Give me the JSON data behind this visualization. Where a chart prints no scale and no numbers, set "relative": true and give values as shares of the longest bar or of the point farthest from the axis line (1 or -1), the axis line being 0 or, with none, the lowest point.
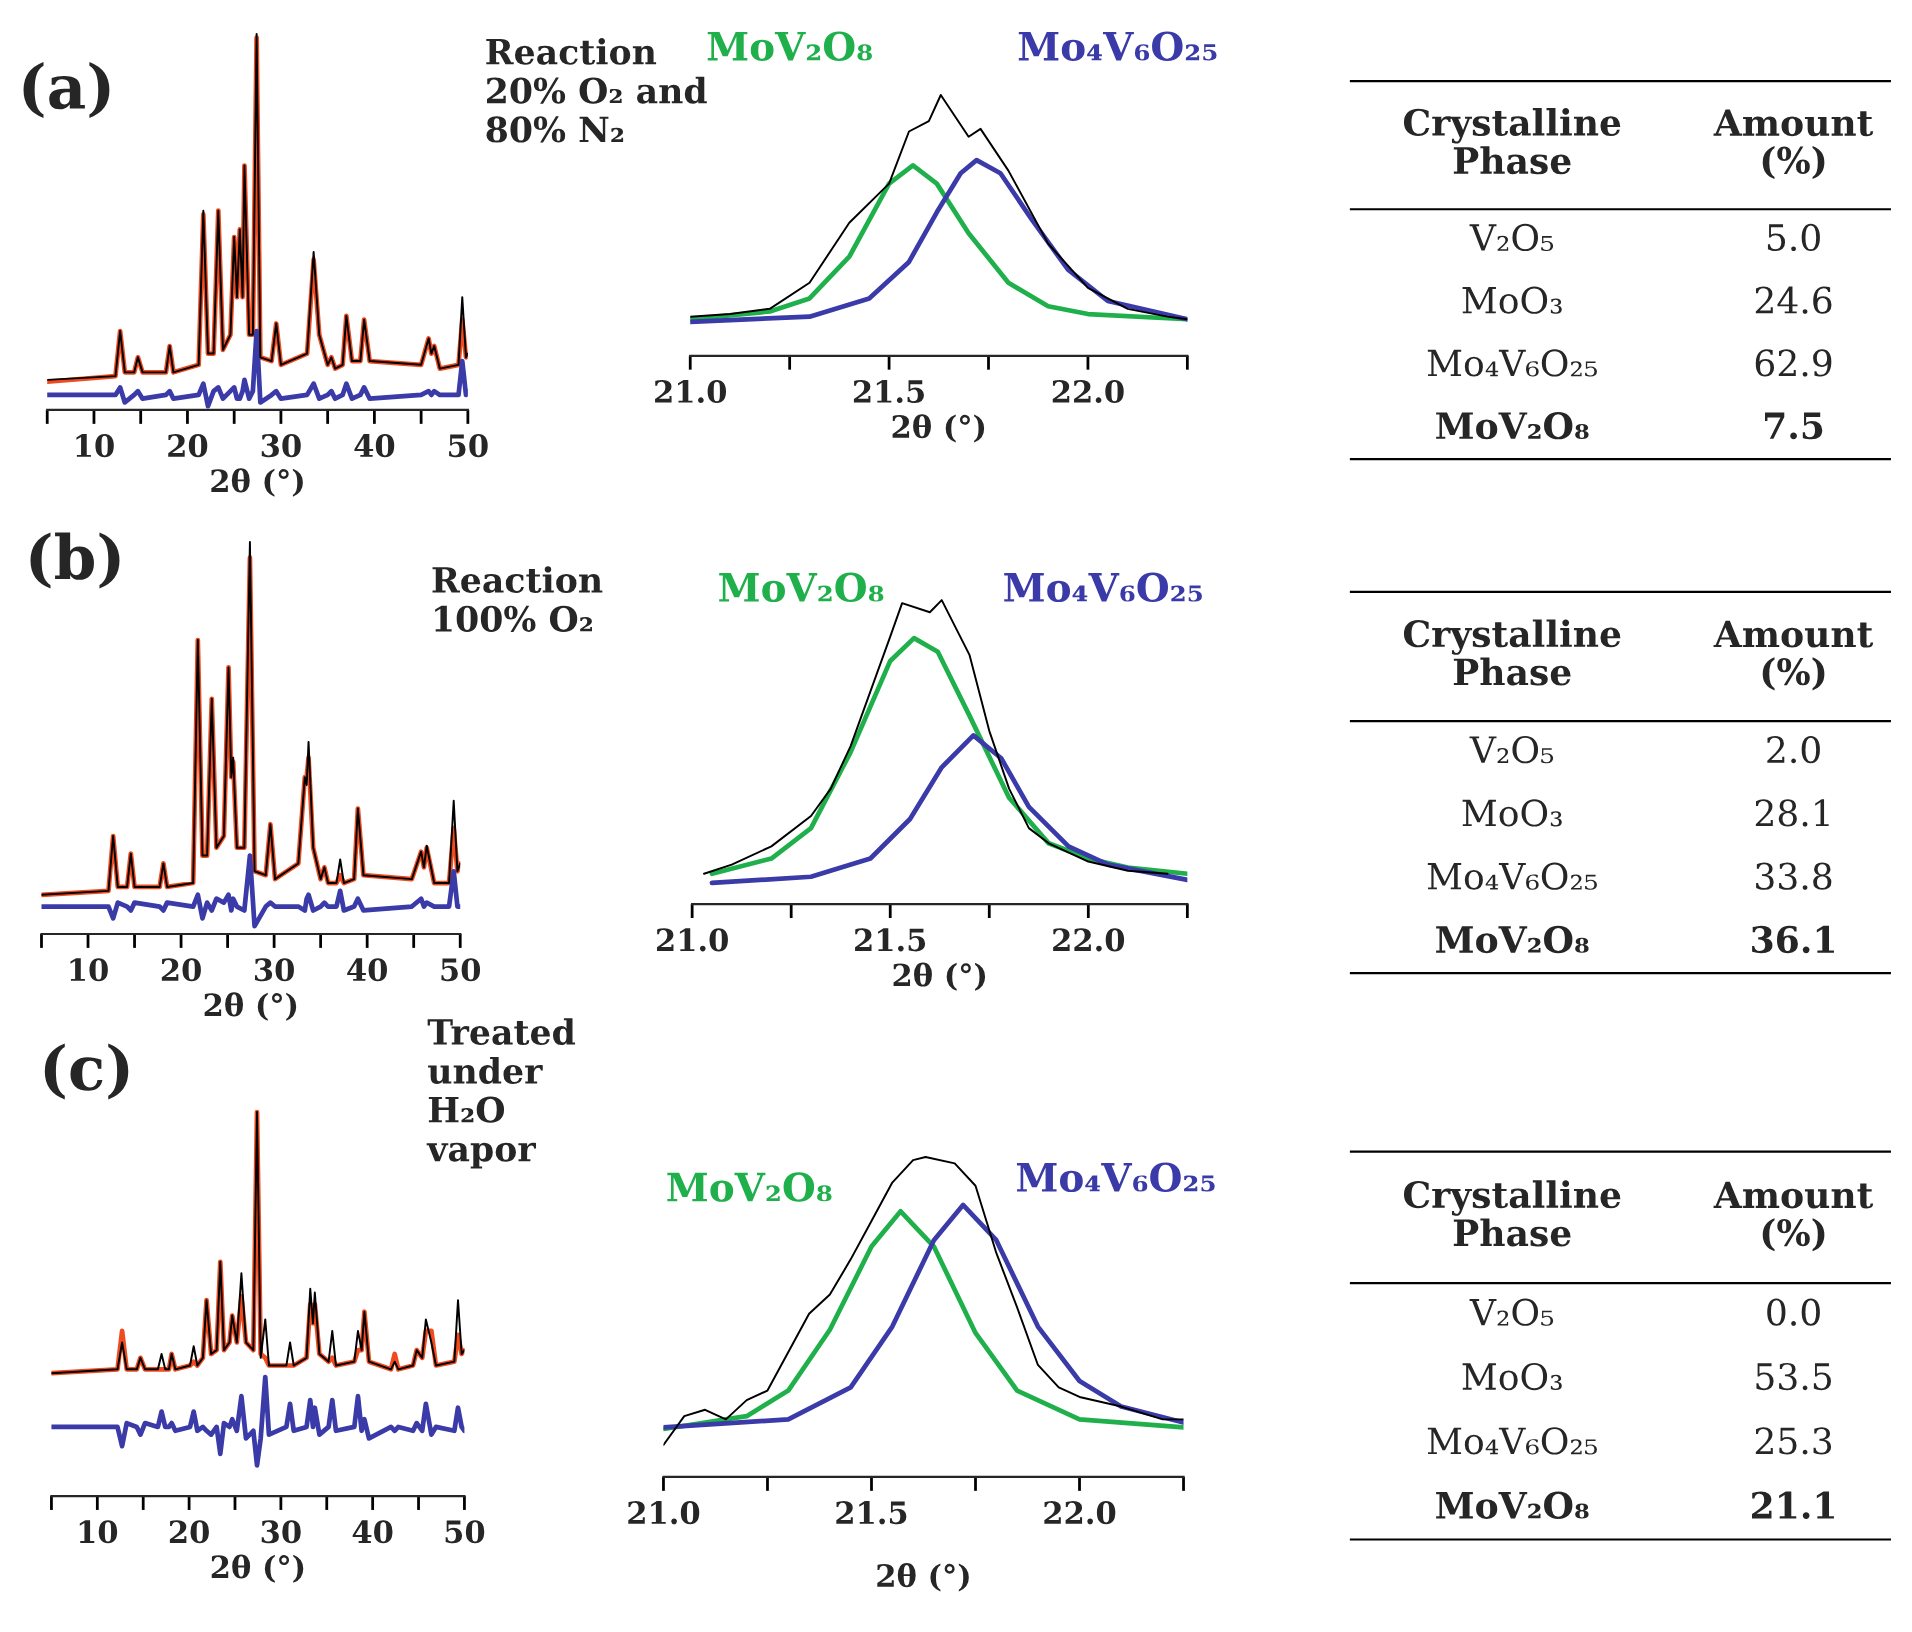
{
  "chart_data": [
    {
      "type": "line",
      "relative": true,
      "xlabel": "2θ (°)",
      "annotations": [
        "(a)",
        "Reaction\n20% O₂ and\n80% N₂"
      ],
      "xlim": [
        5,
        50
      ],
      "xticks": [
        {
          "value": 5,
          "label": null
        },
        10,
        {
          "value": 15,
          "label": null
        },
        20,
        {
          "value": 25,
          "label": null
        },
        30,
        {
          "value": 35,
          "label": null
        },
        40,
        {
          "value": 45,
          "label": null
        },
        50
      ],
      "x": [
        5,
        12.3,
        12.8,
        13.3,
        14.3,
        14.7,
        15.2,
        17.7,
        18.1,
        18.5,
        21.2,
        21.7,
        22.2,
        22.8,
        23.3,
        23.8,
        24.6,
        25.0,
        25.3,
        25.6,
        25.9,
        26.1,
        26.6,
        27.0,
        27.4,
        27.8,
        29.0,
        29.5,
        30.0,
        32.8,
        33.5,
        34.1,
        35.0,
        35.4,
        35.8,
        36.6,
        37.0,
        37.6,
        38.5,
        38.9,
        39.5,
        45.0,
        45.8,
        46.1,
        46.4,
        47.0,
        49.0,
        49.4,
        49.8,
        50
      ],
      "series": [
        {
          "color": "#000000",
          "values": [
            0.08,
            0.09,
            0.21,
            0.1,
            0.1,
            0.14,
            0.1,
            0.1,
            0.17,
            0.1,
            0.12,
            0.53,
            0.15,
            0.15,
            0.53,
            0.16,
            0.2,
            0.46,
            0.3,
            0.48,
            0.3,
            0.65,
            0.2,
            0.2,
            1.0,
            0.14,
            0.13,
            0.23,
            0.12,
            0.15,
            0.42,
            0.2,
            0.12,
            0.14,
            0.11,
            0.12,
            0.25,
            0.13,
            0.13,
            0.24,
            0.13,
            0.12,
            0.19,
            0.15,
            0.17,
            0.11,
            0.12,
            0.3,
            0.14,
            0.15
          ]
        },
        {
          "color": "#f04a1f",
          "values": [
            0.075,
            0.09,
            0.21,
            0.1,
            0.1,
            0.14,
            0.1,
            0.1,
            0.17,
            0.1,
            0.12,
            0.52,
            0.15,
            0.15,
            0.53,
            0.16,
            0.2,
            0.46,
            0.3,
            0.48,
            0.3,
            0.65,
            0.2,
            0.2,
            0.99,
            0.14,
            0.13,
            0.23,
            0.12,
            0.15,
            0.4,
            0.2,
            0.12,
            0.14,
            0.11,
            0.12,
            0.25,
            0.13,
            0.13,
            0.24,
            0.13,
            0.12,
            0.19,
            0.15,
            0.17,
            0.11,
            0.12,
            0.24,
            0.14,
            0.15
          ]
        },
        {
          "color": "#3a3aa8",
          "values": [
            0.04,
            0.04,
            0.06,
            0.02,
            0.04,
            0.05,
            0.03,
            0.04,
            0.05,
            0.03,
            0.04,
            0.07,
            0.01,
            0.05,
            0.06,
            0.03,
            0.05,
            0.06,
            0.03,
            0.03,
            0.05,
            0.08,
            0.03,
            0.05,
            0.21,
            0.02,
            0.04,
            0.05,
            0.03,
            0.04,
            0.07,
            0.03,
            0.04,
            0.05,
            0.03,
            0.04,
            0.07,
            0.03,
            0.04,
            0.06,
            0.03,
            0.04,
            0.05,
            0.04,
            0.05,
            0.04,
            0.04,
            0.13,
            0.04,
            0.05
          ]
        }
      ]
    },
    {
      "type": "line",
      "relative": true,
      "xlabel": "2θ (°)",
      "xlim": [
        21.0,
        22.25
      ],
      "xticks": [
        {
          "value": 21,
          "label": "21.0"
        },
        {
          "value": 21.25,
          "label": null
        },
        21.5,
        {
          "value": 21.75,
          "label": null
        },
        {
          "value": 22,
          "label": "22.0"
        },
        {
          "value": 22.25,
          "label": null
        }
      ],
      "series": [
        {
          "color": "#000000",
          "x": [
            21.0,
            21.1,
            21.2,
            21.3,
            21.4,
            21.5,
            21.55,
            21.6,
            21.63,
            21.7,
            21.73,
            21.8,
            21.9,
            22.0,
            22.1,
            22.2,
            22.25
          ],
          "values": [
            0.15,
            0.16,
            0.18,
            0.28,
            0.51,
            0.66,
            0.86,
            0.9,
            1.0,
            0.84,
            0.87,
            0.71,
            0.43,
            0.26,
            0.18,
            0.15,
            0.14
          ]
        },
        {
          "name": "MoV₂O₈",
          "color": "#1fb04c",
          "x": [
            21.0,
            21.2,
            21.3,
            21.4,
            21.45,
            21.5,
            21.56,
            21.62,
            21.7,
            21.8,
            21.9,
            22.0,
            22.25
          ],
          "values": [
            0.14,
            0.17,
            0.22,
            0.38,
            0.52,
            0.66,
            0.73,
            0.66,
            0.47,
            0.28,
            0.19,
            0.16,
            0.14
          ]
        },
        {
          "name": "Mo₄V₆O₂₅",
          "color": "#3a3aa8",
          "x": [
            21.0,
            21.3,
            21.45,
            21.55,
            21.62,
            21.68,
            21.72,
            21.78,
            21.86,
            21.95,
            22.05,
            22.25
          ],
          "values": [
            0.13,
            0.15,
            0.22,
            0.36,
            0.55,
            0.7,
            0.75,
            0.7,
            0.52,
            0.33,
            0.21,
            0.14
          ]
        }
      ]
    },
    {
      "type": "other",
      "annotations": [
        "Crystalline\nPhase",
        "Amount\n(%)"
      ],
      "categories": [
        "V₂O₅",
        "MoO₃",
        "Mo₄V₆O₂₅",
        "MoV₂O₈"
      ],
      "value_labels": [
        "5.0",
        "24.6",
        "62.9",
        "7.5"
      ],
      "data_labels": true
    },
    {
      "type": "line",
      "relative": true,
      "xlabel": "2θ (°)",
      "annotations": [
        "(b)",
        "Reaction\n100% O₂"
      ],
      "xlim": [
        5,
        50
      ],
      "xticks": [
        {
          "value": 5,
          "label": null
        },
        10,
        {
          "value": 15,
          "label": null
        },
        20,
        {
          "value": 25,
          "label": null
        },
        30,
        {
          "value": 35,
          "label": null
        },
        40,
        {
          "value": 45,
          "label": null
        },
        50
      ],
      "x": [
        5,
        12.2,
        12.7,
        13.2,
        14.2,
        14.6,
        15.0,
        17.7,
        18.1,
        18.5,
        21.3,
        21.8,
        22.3,
        22.8,
        23.3,
        23.8,
        24.6,
        25.1,
        25.4,
        25.6,
        26.0,
        26.8,
        27.4,
        27.9,
        29.1,
        29.6,
        30.1,
        32.6,
        33.3,
        33.5,
        33.7,
        34.2,
        35.0,
        35.4,
        35.8,
        36.7,
        37.1,
        37.5,
        38.6,
        39.0,
        39.6,
        44.8,
        45.8,
        46.1,
        46.4,
        47.2,
        48.8,
        49.3,
        49.7,
        50
      ],
      "series": [
        {
          "color": "#000000",
          "values": [
            0.1,
            0.11,
            0.25,
            0.12,
            0.12,
            0.205,
            0.12,
            0.12,
            0.18,
            0.12,
            0.13,
            0.75,
            0.2,
            0.2,
            0.6,
            0.22,
            0.25,
            0.68,
            0.4,
            0.45,
            0.22,
            0.22,
            1.0,
            0.16,
            0.15,
            0.28,
            0.14,
            0.18,
            0.4,
            0.38,
            0.49,
            0.22,
            0.14,
            0.17,
            0.13,
            0.13,
            0.19,
            0.13,
            0.14,
            0.32,
            0.15,
            0.14,
            0.21,
            0.17,
            0.225,
            0.13,
            0.13,
            0.34,
            0.16,
            0.18
          ]
        },
        {
          "color": "#f04a1f",
          "values": [
            0.1,
            0.11,
            0.25,
            0.12,
            0.12,
            0.205,
            0.12,
            0.12,
            0.18,
            0.12,
            0.13,
            0.75,
            0.2,
            0.2,
            0.6,
            0.22,
            0.25,
            0.68,
            0.4,
            0.44,
            0.22,
            0.22,
            0.96,
            0.16,
            0.15,
            0.28,
            0.14,
            0.18,
            0.4,
            0.4,
            0.45,
            0.22,
            0.14,
            0.17,
            0.13,
            0.13,
            0.15,
            0.13,
            0.14,
            0.32,
            0.15,
            0.14,
            0.21,
            0.17,
            0.22,
            0.13,
            0.13,
            0.27,
            0.16,
            0.18
          ]
        },
        {
          "color": "#3a3aa8",
          "values": [
            0.07,
            0.07,
            0.04,
            0.08,
            0.07,
            0.06,
            0.08,
            0.07,
            0.06,
            0.08,
            0.07,
            0.1,
            0.04,
            0.08,
            0.06,
            0.09,
            0.08,
            0.1,
            0.06,
            0.09,
            0.07,
            0.06,
            0.2,
            0.02,
            0.07,
            0.08,
            0.07,
            0.07,
            0.06,
            0.09,
            0.1,
            0.06,
            0.07,
            0.08,
            0.07,
            0.07,
            0.11,
            0.06,
            0.07,
            0.09,
            0.06,
            0.07,
            0.09,
            0.07,
            0.08,
            0.07,
            0.07,
            0.16,
            0.07,
            0.07
          ]
        }
      ]
    },
    {
      "type": "line",
      "relative": true,
      "xlabel": "2θ (°)",
      "xlim": [
        21.0,
        22.25
      ],
      "xticks": [
        {
          "value": 21,
          "label": "21.0"
        },
        {
          "value": 21.25,
          "label": null
        },
        21.5,
        {
          "value": 21.75,
          "label": null
        },
        {
          "value": 22,
          "label": "22.0"
        },
        {
          "value": 22.25,
          "label": null
        }
      ],
      "series": [
        {
          "color": "#000000",
          "x": [
            21.03,
            21.1,
            21.2,
            21.3,
            21.35,
            21.4,
            21.45,
            21.5,
            21.53,
            21.6,
            21.63,
            21.7,
            21.75,
            21.8,
            21.85,
            21.9,
            22.0,
            22.1,
            22.2
          ],
          "values": [
            0.1,
            0.13,
            0.19,
            0.29,
            0.38,
            0.52,
            0.7,
            0.88,
            0.99,
            0.96,
            1.0,
            0.82,
            0.57,
            0.38,
            0.25,
            0.2,
            0.14,
            0.11,
            0.1
          ]
        },
        {
          "name": "MoV₂O₈",
          "color": "#1fb04c",
          "x": [
            21.05,
            21.2,
            21.3,
            21.4,
            21.5,
            21.56,
            21.62,
            21.7,
            21.8,
            21.9,
            22.0,
            22.1,
            22.25
          ],
          "values": [
            0.1,
            0.15,
            0.25,
            0.5,
            0.8,
            0.875,
            0.83,
            0.62,
            0.35,
            0.2,
            0.15,
            0.12,
            0.1
          ]
        },
        {
          "name": "Mo₄V₆O₂₅",
          "color": "#3a3aa8",
          "x": [
            21.05,
            21.3,
            21.45,
            21.55,
            21.63,
            21.71,
            21.78,
            21.85,
            21.95,
            22.05,
            22.25
          ],
          "values": [
            0.07,
            0.09,
            0.15,
            0.28,
            0.45,
            0.555,
            0.48,
            0.32,
            0.19,
            0.13,
            0.08
          ]
        }
      ]
    },
    {
      "type": "other",
      "annotations": [
        "Crystalline\nPhase",
        "Amount\n(%)"
      ],
      "categories": [
        "V₂O₅",
        "MoO₃",
        "Mo₄V₆O₂₅",
        "MoV₂O₈"
      ],
      "value_labels": [
        "2.0",
        "28.1",
        "33.8",
        "36.1"
      ],
      "data_labels": true
    },
    {
      "type": "line",
      "relative": true,
      "xlabel": "2θ (°)",
      "annotations": [
        "(c)",
        "Treated\nunder\nH₂O\nvapor"
      ],
      "xlim": [
        5,
        50
      ],
      "xticks": [
        {
          "value": 5,
          "label": null
        },
        10,
        {
          "value": 15,
          "label": null
        },
        20,
        {
          "value": 25,
          "label": null
        },
        30,
        {
          "value": 35,
          "label": null
        },
        40,
        {
          "value": 45,
          "label": null
        },
        50
      ],
      "x": [
        5,
        12.2,
        12.7,
        13.2,
        14.3,
        14.7,
        15.2,
        16.6,
        17.0,
        17.4,
        17.8,
        18.1,
        18.5,
        20.1,
        20.5,
        20.9,
        21.5,
        21.9,
        22.4,
        23.0,
        23.4,
        23.8,
        24.4,
        24.7,
        25.2,
        25.7,
        26.2,
        27.0,
        27.4,
        27.8,
        28.3,
        28.7,
        30.6,
        31.0,
        31.4,
        32.8,
        33.2,
        33.5,
        33.7,
        34.2,
        35.2,
        35.6,
        36.0,
        38.0,
        38.4,
        38.8,
        39.1,
        39.6,
        42.0,
        42.4,
        42.8,
        44.4,
        44.8,
        45.4,
        45.8,
        46.4,
        46.9,
        48.9,
        49.3,
        49.7,
        50
      ],
      "series": [
        {
          "color": "#000000",
          "values": [
            0.32,
            0.33,
            0.4,
            0.33,
            0.33,
            0.36,
            0.33,
            0.33,
            0.37,
            0.33,
            0.33,
            0.37,
            0.33,
            0.34,
            0.39,
            0.34,
            0.36,
            0.51,
            0.37,
            0.38,
            0.61,
            0.38,
            0.4,
            0.47,
            0.4,
            0.58,
            0.4,
            0.38,
            1.0,
            0.36,
            0.46,
            0.34,
            0.34,
            0.4,
            0.34,
            0.36,
            0.54,
            0.45,
            0.53,
            0.37,
            0.35,
            0.43,
            0.34,
            0.35,
            0.43,
            0.38,
            0.48,
            0.35,
            0.33,
            0.35,
            0.33,
            0.34,
            0.38,
            0.36,
            0.46,
            0.4,
            0.34,
            0.35,
            0.51,
            0.37,
            0.38
          ]
        },
        {
          "color": "#f04a1f",
          "values": [
            0.32,
            0.33,
            0.43,
            0.33,
            0.33,
            0.36,
            0.33,
            0.33,
            0.33,
            0.33,
            0.33,
            0.37,
            0.33,
            0.34,
            0.35,
            0.34,
            0.36,
            0.51,
            0.37,
            0.38,
            0.61,
            0.38,
            0.4,
            0.47,
            0.4,
            0.52,
            0.4,
            0.38,
            1.0,
            0.37,
            0.36,
            0.34,
            0.34,
            0.34,
            0.34,
            0.36,
            0.5,
            0.45,
            0.5,
            0.37,
            0.35,
            0.36,
            0.34,
            0.35,
            0.38,
            0.38,
            0.48,
            0.35,
            0.33,
            0.37,
            0.33,
            0.34,
            0.38,
            0.36,
            0.43,
            0.43,
            0.34,
            0.35,
            0.42,
            0.37,
            0.38
          ]
        },
        {
          "color": "#3a3aa8",
          "values": [
            0.18,
            0.18,
            0.13,
            0.19,
            0.18,
            0.16,
            0.19,
            0.18,
            0.22,
            0.18,
            0.18,
            0.19,
            0.17,
            0.18,
            0.22,
            0.17,
            0.18,
            0.17,
            0.16,
            0.18,
            0.11,
            0.19,
            0.18,
            0.2,
            0.17,
            0.26,
            0.15,
            0.17,
            0.08,
            0.15,
            0.31,
            0.16,
            0.18,
            0.24,
            0.17,
            0.18,
            0.25,
            0.18,
            0.23,
            0.16,
            0.18,
            0.25,
            0.17,
            0.18,
            0.26,
            0.17,
            0.2,
            0.15,
            0.18,
            0.17,
            0.18,
            0.17,
            0.19,
            0.17,
            0.24,
            0.16,
            0.18,
            0.17,
            0.23,
            0.18,
            0.17
          ]
        }
      ]
    },
    {
      "type": "line",
      "relative": true,
      "xlabel": "2θ (°)",
      "xlim": [
        21.0,
        22.25
      ],
      "xticks": [
        {
          "value": 21,
          "label": "21.0"
        },
        {
          "value": 21.25,
          "label": null
        },
        21.5,
        {
          "value": 21.75,
          "label": null
        },
        {
          "value": 22,
          "label": "22.0"
        },
        {
          "value": 22.25,
          "label": null
        }
      ],
      "series": [
        {
          "color": "#000000",
          "x": [
            21.0,
            21.05,
            21.1,
            21.15,
            21.2,
            21.25,
            21.35,
            21.4,
            21.45,
            21.5,
            21.55,
            21.6,
            21.63,
            21.7,
            21.75,
            21.8,
            21.85,
            21.9,
            21.95,
            22.0,
            22.1,
            22.2,
            22.25
          ],
          "values": [
            0.1,
            0.19,
            0.21,
            0.18,
            0.24,
            0.27,
            0.51,
            0.57,
            0.68,
            0.8,
            0.92,
            0.99,
            1.0,
            0.98,
            0.91,
            0.7,
            0.53,
            0.35,
            0.28,
            0.25,
            0.22,
            0.18,
            0.18
          ]
        },
        {
          "name": "MoV₂O₈",
          "color": "#1fb04c",
          "x": [
            21.0,
            21.2,
            21.3,
            21.4,
            21.5,
            21.57,
            21.65,
            21.75,
            21.85,
            22.0,
            22.25
          ],
          "values": [
            0.15,
            0.19,
            0.27,
            0.46,
            0.72,
            0.83,
            0.72,
            0.45,
            0.27,
            0.18,
            0.155
          ]
        },
        {
          "name": "Mo₄V₆O₂₅",
          "color": "#3a3aa8",
          "x": [
            21.0,
            21.3,
            21.45,
            21.55,
            21.65,
            21.72,
            21.8,
            21.9,
            22.0,
            22.1,
            22.25
          ],
          "values": [
            0.155,
            0.18,
            0.28,
            0.47,
            0.74,
            0.85,
            0.74,
            0.47,
            0.3,
            0.22,
            0.17
          ]
        }
      ]
    },
    {
      "type": "other",
      "annotations": [
        "Crystalline\nPhase",
        "Amount\n(%)"
      ],
      "categories": [
        "V₂O₅",
        "MoO₃",
        "Mo₄V₆O₂₅",
        "MoV₂O₈"
      ],
      "value_labels": [
        "0.0",
        "53.5",
        "25.3",
        "21.1"
      ],
      "data_labels": true
    }
  ]
}
